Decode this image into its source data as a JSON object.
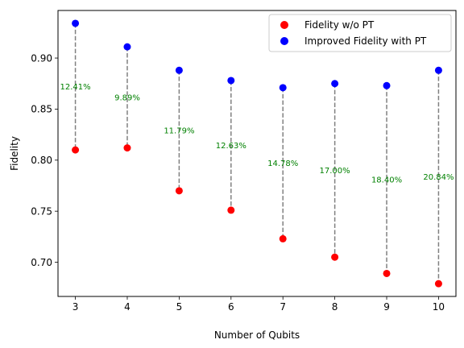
{
  "chart_data": {
    "type": "scatter",
    "title": "",
    "xlabel": "Number of Qubits",
    "ylabel": "Fidelity",
    "x": [
      3,
      4,
      5,
      6,
      7,
      8,
      9,
      10
    ],
    "xlim": [
      2.665,
      10.335
    ],
    "ylim": [
      0.6665,
      0.9466
    ],
    "xticks": [
      "3",
      "4",
      "5",
      "6",
      "7",
      "8",
      "9",
      "10"
    ],
    "yticks": [
      "0.70",
      "0.75",
      "0.80",
      "0.85",
      "0.90"
    ],
    "ytick_values": [
      0.7,
      0.75,
      0.8,
      0.85,
      0.9
    ],
    "grid": false,
    "legend_position": "top-right",
    "series": [
      {
        "name": "Fidelity w/o PT",
        "color": "#ff0000",
        "values": [
          0.81,
          0.812,
          0.77,
          0.751,
          0.723,
          0.705,
          0.689,
          0.679
        ]
      },
      {
        "name": "Improved Fidelity with PT",
        "color": "#0000ff",
        "values": [
          0.934,
          0.911,
          0.888,
          0.878,
          0.871,
          0.875,
          0.873,
          0.888
        ]
      }
    ],
    "connector_color": "#808080",
    "annotation_color": "#008000",
    "annotations": [
      "12.41%",
      "9.89%",
      "11.79%",
      "12.63%",
      "14.78%",
      "17.00%",
      "18.40%",
      "20.84%"
    ]
  }
}
